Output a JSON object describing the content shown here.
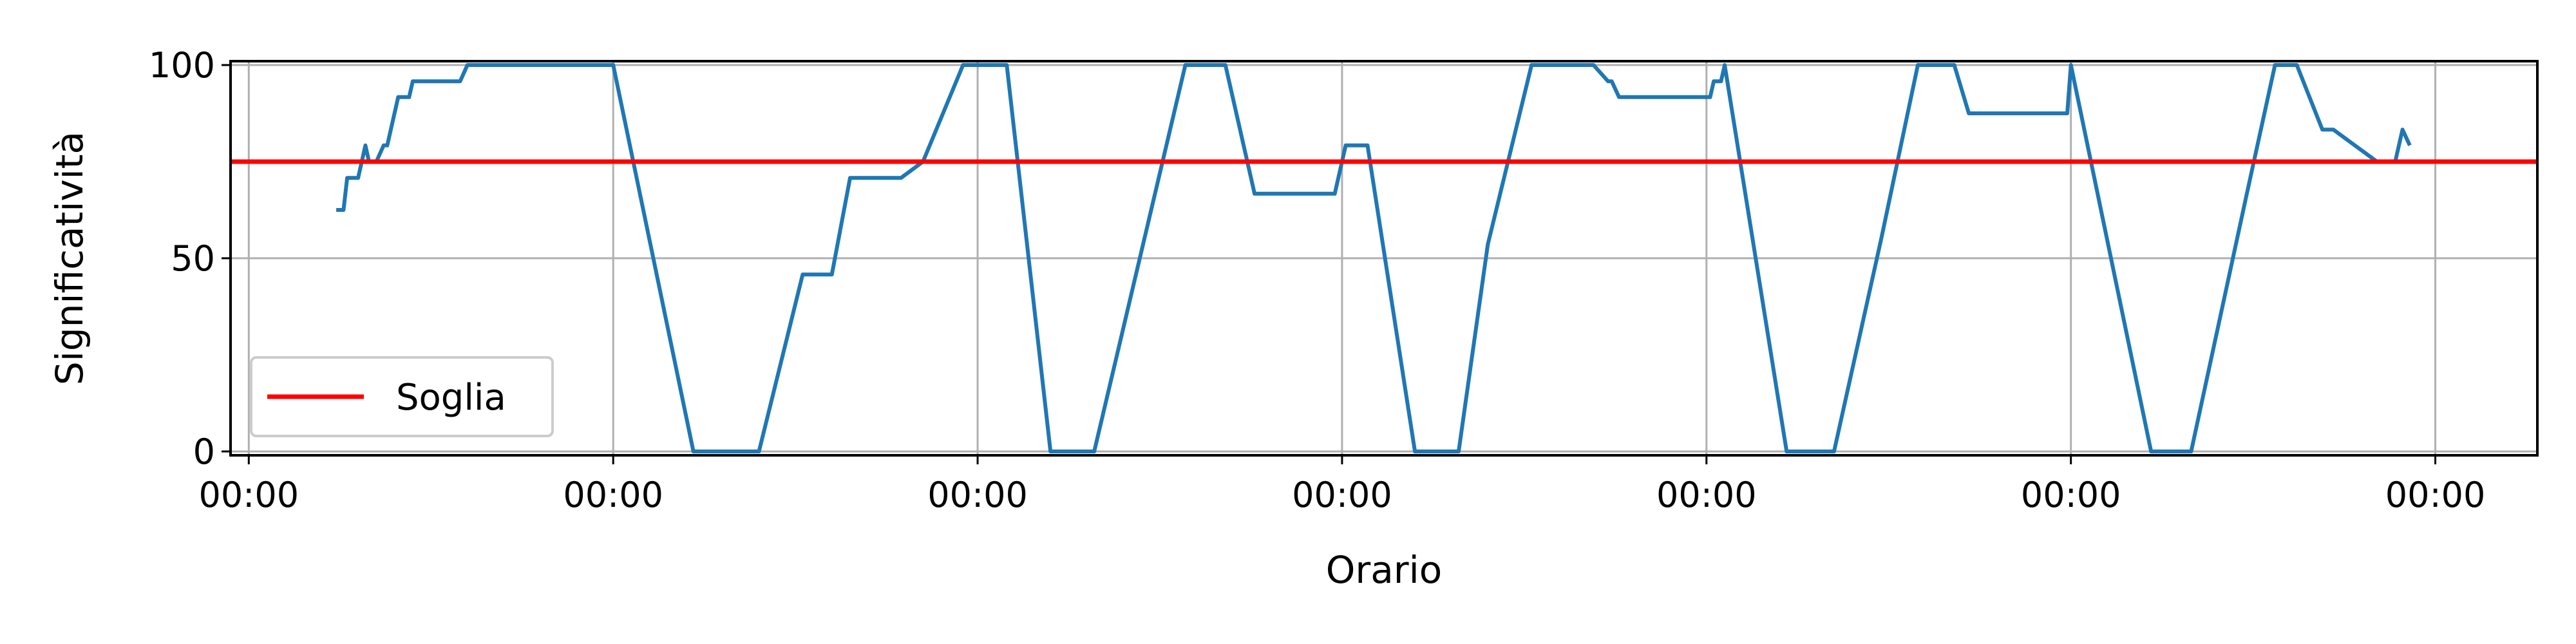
{
  "chart_data": {
    "type": "line",
    "xlabel": "Orario",
    "ylabel": "Significatività",
    "xlim": [
      -0.05,
      6.28
    ],
    "ylim": [
      -1,
      101
    ],
    "x_tick_values": [
      0,
      1,
      2,
      3,
      4,
      5,
      6
    ],
    "x_tick_labels": [
      "00:00",
      "00:00",
      "00:00",
      "00:00",
      "00:00",
      "00:00",
      "00:00"
    ],
    "y_ticks": [
      0,
      50,
      100
    ],
    "grid": true,
    "legend_position": "lower-left",
    "series": [
      {
        "color": "#1f77b4",
        "x": [
          0.24,
          0.26,
          0.27,
          0.3,
          0.32,
          0.33,
          0.35,
          0.37,
          0.38,
          0.41,
          0.44,
          0.45,
          0.47,
          0.58,
          0.6,
          0.97,
          1.0,
          1.22,
          1.4,
          1.52,
          1.6,
          1.65,
          1.79,
          1.85,
          1.96,
          2.08,
          2.2,
          2.32,
          2.57,
          2.68,
          2.76,
          2.82,
          2.98,
          3.01,
          3.07,
          3.2,
          3.32,
          3.4,
          3.52,
          3.69,
          3.73,
          3.74,
          3.76,
          3.77,
          3.81,
          4.01,
          4.02,
          4.04,
          4.05,
          4.22,
          4.35,
          4.48,
          4.58,
          4.68,
          4.72,
          4.78,
          4.99,
          5.0,
          5.22,
          5.33,
          5.48,
          5.56,
          5.62,
          5.69,
          5.72,
          5.84,
          5.86,
          5.89,
          5.91,
          5.93
        ],
        "y": [
          62.5,
          62.5,
          70.8,
          70.8,
          79.2,
          75,
          75,
          79.2,
          79.2,
          91.7,
          91.7,
          95.8,
          95.8,
          95.8,
          100,
          100,
          100,
          0,
          0,
          45.8,
          45.8,
          70.8,
          70.8,
          75,
          100,
          100,
          0,
          0,
          100,
          100,
          66.7,
          66.7,
          66.7,
          79.2,
          79.2,
          0,
          0,
          53.6,
          100,
          100,
          95.8,
          95.8,
          91.7,
          91.7,
          91.7,
          91.7,
          95.8,
          95.8,
          100,
          0,
          0,
          55.2,
          100,
          100,
          87.5,
          87.5,
          87.5,
          100,
          0,
          0,
          65.5,
          100,
          100,
          83.3,
          83.3,
          75,
          75,
          75,
          83.3,
          79.2
        ]
      },
      {
        "name": "Soglia",
        "color": "#ff0000",
        "x": [
          -0.05,
          6.28
        ],
        "y": [
          75,
          75
        ]
      }
    ]
  }
}
